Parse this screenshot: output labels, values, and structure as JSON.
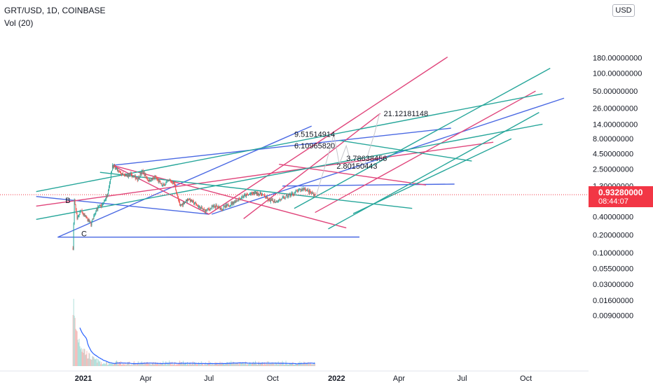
{
  "header": {
    "symbol": "GRT/USD, 1D, COINBASE",
    "indicator": "Vol (20)",
    "currency": "USD"
  },
  "last_price": {
    "value": "0.93280000",
    "countdown": "08:44:07",
    "color": "#f23645"
  },
  "chart_data": {
    "type": "candlestick",
    "title": "GRT/USD, 1D, COINBASE",
    "y_scale": "log",
    "y_ticks": [
      "180.00000000",
      "100.00000000",
      "50.00000000",
      "26.00000000",
      "14.00000000",
      "8.00000000",
      "4.50000000",
      "2.50000000",
      "1.30000000",
      "0.40000000",
      "0.20000000",
      "0.10000000",
      "0.05500000",
      "0.03000000",
      "0.01600000",
      "0.00900000"
    ],
    "x_ticks": [
      "2021",
      "Apr",
      "Jul",
      "Oct",
      "2022",
      "Apr",
      "Jul",
      "Oct"
    ],
    "price_path": [
      [
        "2020-12-17",
        0.12
      ],
      [
        "2020-12-19",
        0.75
      ],
      [
        "2020-12-23",
        0.35
      ],
      [
        "2020-12-28",
        0.5
      ],
      [
        "2021-01-05",
        0.38
      ],
      [
        "2021-01-12",
        0.3
      ],
      [
        "2021-01-20",
        0.55
      ],
      [
        "2021-01-28",
        0.62
      ],
      [
        "2021-02-04",
        0.9
      ],
      [
        "2021-02-08",
        1.5
      ],
      [
        "2021-02-12",
        2.88
      ],
      [
        "2021-02-20",
        2.3
      ],
      [
        "2021-03-01",
        1.9
      ],
      [
        "2021-03-10",
        2.0
      ],
      [
        "2021-03-20",
        1.7
      ],
      [
        "2021-03-27",
        2.3
      ],
      [
        "2021-04-05",
        1.6
      ],
      [
        "2021-04-15",
        1.8
      ],
      [
        "2021-04-25",
        1.3
      ],
      [
        "2021-05-05",
        1.6
      ],
      [
        "2021-05-12",
        1.45
      ],
      [
        "2021-05-20",
        0.6
      ],
      [
        "2021-06-01",
        0.8
      ],
      [
        "2021-06-15",
        0.6
      ],
      [
        "2021-06-25",
        0.5
      ],
      [
        "2021-07-10",
        0.6
      ],
      [
        "2021-07-20",
        0.55
      ],
      [
        "2021-08-01",
        0.65
      ],
      [
        "2021-08-20",
        0.88
      ],
      [
        "2021-09-05",
        1.0
      ],
      [
        "2021-09-15",
        0.95
      ],
      [
        "2021-09-25",
        0.75
      ],
      [
        "2021-10-05",
        0.72
      ],
      [
        "2021-10-15",
        0.8
      ],
      [
        "2021-11-01",
        1.0
      ],
      [
        "2021-11-15",
        1.2
      ],
      [
        "2021-11-25",
        1.0
      ],
      [
        "2021-12-01",
        0.93
      ]
    ],
    "volume_line_color": "#2962ff",
    "projection_path": [
      [
        "2021-12-03",
        0.93
      ],
      [
        "2021-12-18",
        3.5
      ],
      [
        "2021-12-28",
        9.5
      ],
      [
        "2022-01-05",
        3.0
      ],
      [
        "2022-01-15",
        6.1
      ],
      [
        "2022-01-23",
        2.8
      ],
      [
        "2022-01-30",
        3.8
      ],
      [
        "2022-02-10",
        2.8
      ],
      [
        "2022-02-25",
        10.0
      ],
      [
        "2022-03-04",
        21.12
      ]
    ],
    "annotations": [
      {
        "text": "9.51514914",
        "date": "2021-11-01",
        "price": 9.51514914
      },
      {
        "text": "6.10965820",
        "date": "2021-11-01",
        "price": 6.1096582
      },
      {
        "text": "3.78638456",
        "date": "2022-01-15",
        "price": 3.78638456
      },
      {
        "text": "2.80150443",
        "date": "2022-01-01",
        "price": 2.80150443
      },
      {
        "text": "21.12181148",
        "date": "2022-03-10",
        "price": 21.12181148
      },
      {
        "text": "B",
        "date": "2020-12-06",
        "price": 0.75
      },
      {
        "text": "C",
        "date": "2020-12-29",
        "price": 0.21
      }
    ],
    "trend_lines": [
      {
        "color": "#4a69e3",
        "from": [
          "2020-11-25",
          0.182
        ],
        "to": [
          "2021-11-26",
          13.0
        ]
      },
      {
        "color": "#4a69e3",
        "from": [
          "2020-11-25",
          0.182
        ],
        "to": [
          "2022-02-03",
          0.183
        ]
      },
      {
        "color": "#4a69e3",
        "from": [
          "2020-10-25",
          0.87
        ],
        "to": [
          "2021-07-01",
          0.44
        ]
      },
      {
        "color": "#4a69e3",
        "from": [
          "2021-02-12",
          2.88
        ],
        "to": [
          "2022-06-15",
          12.0
        ]
      },
      {
        "color": "#4a69e3",
        "from": [
          "2021-07-05",
          0.44
        ],
        "to": [
          "2022-11-25",
          38.0
        ]
      },
      {
        "color": "#4a69e3",
        "from": [
          "2021-10-15",
          1.3
        ],
        "to": [
          "2022-06-20",
          1.4
        ]
      },
      {
        "color": "#e0457b",
        "from": [
          "2020-10-25",
          0.6
        ],
        "to": [
          "2022-08-15",
          7.0
        ]
      },
      {
        "color": "#e0457b",
        "from": [
          "2021-02-12",
          2.88
        ],
        "to": [
          "2021-07-01",
          0.44
        ]
      },
      {
        "color": "#e0457b",
        "from": [
          "2021-02-12",
          2.88
        ],
        "to": [
          "2022-01-15",
          0.26
        ]
      },
      {
        "color": "#e0457b",
        "from": [
          "2021-07-01",
          0.44
        ],
        "to": [
          "2022-06-10",
          185.0
        ]
      },
      {
        "color": "#e0457b",
        "from": [
          "2021-08-20",
          0.37
        ],
        "to": [
          "2022-03-05",
          21.12
        ]
      },
      {
        "color": "#e0457b",
        "from": [
          "2021-10-10",
          3.0
        ],
        "to": [
          "2022-05-10",
          1.35
        ]
      },
      {
        "color": "#e0457b",
        "from": [
          "2021-12-01",
          0.47
        ],
        "to": [
          "2022-10-15",
          50.0
        ]
      },
      {
        "color": "#26a69a",
        "from": [
          "2020-10-25",
          0.36
        ],
        "to": [
          "2022-10-25",
          14.0
        ]
      },
      {
        "color": "#26a69a",
        "from": [
          "2020-10-25",
          1.05
        ],
        "to": [
          "2022-10-25",
          45.0
        ]
      },
      {
        "color": "#26a69a",
        "from": [
          "2021-01-25",
          2.2
        ],
        "to": [
          "2022-04-20",
          0.55
        ]
      },
      {
        "color": "#26a69a",
        "from": [
          "2021-11-01",
          0.55
        ],
        "to": [
          "2022-11-05",
          120.0
        ]
      },
      {
        "color": "#26a69a",
        "from": [
          "2021-12-20",
          0.25
        ],
        "to": [
          "2022-10-20",
          22.0
        ]
      },
      {
        "color": "#26a69a",
        "from": [
          "2022-01-05",
          7.5
        ],
        "to": [
          "2022-07-15",
          3.4
        ]
      },
      {
        "color": "#26a69a",
        "from": [
          "2022-01-25",
          0.45
        ],
        "to": [
          "2022-09-10",
          8.0
        ]
      }
    ]
  }
}
